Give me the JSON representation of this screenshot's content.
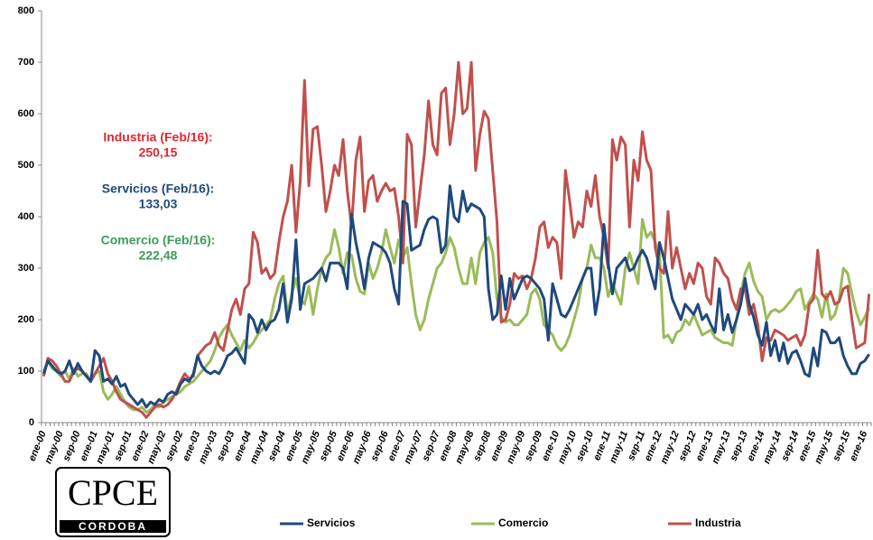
{
  "chart_data": {
    "type": "line",
    "categories": [
      "ene-00",
      null,
      null,
      null,
      "may-00",
      null,
      null,
      null,
      "sep-00",
      null,
      null,
      null,
      "ene-01",
      null,
      null,
      null,
      "may-01",
      null,
      null,
      null,
      "sep-01",
      null,
      null,
      null,
      "ene-02",
      null,
      null,
      null,
      "may-02",
      null,
      null,
      null,
      "sep-02",
      null,
      null,
      null,
      "ene-03",
      null,
      null,
      null,
      "may-03",
      null,
      null,
      null,
      "sep-03",
      null,
      null,
      null,
      "ene-04",
      null,
      null,
      null,
      "may-04",
      null,
      null,
      null,
      "sep-04",
      null,
      null,
      null,
      "ene-05",
      null,
      null,
      null,
      "may-05",
      null,
      null,
      null,
      "sep-05",
      null,
      null,
      null,
      "ene-06",
      null,
      null,
      null,
      "may-06",
      null,
      null,
      null,
      "sep-06",
      null,
      null,
      null,
      "ene-07",
      null,
      null,
      null,
      "may-07",
      null,
      null,
      null,
      "sep-07",
      null,
      null,
      null,
      "ene-08",
      null,
      null,
      null,
      "may-08",
      null,
      null,
      null,
      "sep-08",
      null,
      null,
      null,
      "ene-09",
      null,
      null,
      null,
      "may-09",
      null,
      null,
      null,
      "sep-09",
      null,
      null,
      null,
      "ene-10",
      null,
      null,
      null,
      "may-10",
      null,
      null,
      null,
      "sep-10",
      null,
      null,
      null,
      "ene-11",
      null,
      null,
      null,
      "may-11",
      null,
      null,
      null,
      "sep-11",
      null,
      null,
      null,
      "ene-12",
      null,
      null,
      null,
      "may-12",
      null,
      null,
      null,
      "sep-12",
      null,
      null,
      null,
      "ene-13",
      null,
      null,
      null,
      "may-13",
      null,
      null,
      null,
      "sep-13",
      null,
      null,
      null,
      "ene-14",
      null,
      null,
      null,
      "may-14",
      null,
      null,
      null,
      "sep-14",
      null,
      null,
      null,
      "ene-15",
      null,
      null,
      null,
      "may-15",
      null,
      null,
      null,
      "sep-15",
      null,
      null,
      null,
      "ene-16",
      null
    ],
    "series": [
      {
        "name": "Servicios",
        "color": "#1f497d",
        "values": [
          95,
          120,
          110,
          100,
          95,
          100,
          120,
          95,
          115,
          100,
          90,
          80,
          140,
          130,
          80,
          85,
          75,
          90,
          70,
          75,
          55,
          45,
          35,
          45,
          30,
          40,
          35,
          45,
          40,
          55,
          60,
          55,
          75,
          85,
          80,
          95,
          130,
          110,
          100,
          95,
          100,
          95,
          110,
          130,
          135,
          145,
          130,
          115,
          210,
          200,
          175,
          200,
          180,
          195,
          200,
          220,
          270,
          195,
          240,
          355,
          220,
          270,
          275,
          280,
          290,
          300,
          275,
          310,
          310,
          310,
          300,
          260,
          405,
          350,
          310,
          260,
          320,
          350,
          345,
          340,
          330,
          310,
          260,
          230,
          430,
          425,
          335,
          340,
          345,
          375,
          395,
          400,
          395,
          330,
          345,
          460,
          400,
          390,
          450,
          410,
          425,
          420,
          415,
          400,
          260,
          200,
          210,
          285,
          220,
          280,
          240,
          260,
          280,
          285,
          280,
          270,
          260,
          240,
          160,
          270,
          240,
          210,
          205,
          220,
          240,
          260,
          280,
          300,
          300,
          210,
          260,
          385,
          310,
          250,
          300,
          310,
          320,
          295,
          300,
          320,
          335,
          320,
          290,
          260,
          350,
          320,
          280,
          240,
          220,
          200,
          230,
          220,
          210,
          230,
          200,
          210,
          190,
          175,
          260,
          180,
          210,
          175,
          200,
          230,
          280,
          230,
          205,
          170,
          150,
          195,
          130,
          160,
          120,
          155,
          115,
          135,
          140,
          120,
          95,
          90,
          145,
          110,
          180,
          175,
          155,
          155,
          165,
          130,
          110,
          95,
          95,
          115,
          120,
          133.03
        ]
      },
      {
        "name": "Comercio",
        "color": "#9bbb59",
        "values": [
          100,
          120,
          105,
          100,
          90,
          100,
          85,
          105,
          90,
          95,
          95,
          80,
          95,
          100,
          60,
          45,
          55,
          70,
          55,
          40,
          30,
          25,
          25,
          30,
          20,
          25,
          35,
          30,
          40,
          45,
          50,
          55,
          60,
          70,
          75,
          80,
          90,
          100,
          110,
          120,
          140,
          165,
          180,
          190,
          170,
          155,
          140,
          160,
          145,
          155,
          170,
          180,
          190,
          200,
          240,
          270,
          285,
          210,
          250,
          280,
          240,
          230,
          265,
          210,
          260,
          300,
          320,
          330,
          375,
          340,
          290,
          330,
          325,
          280,
          255,
          250,
          310,
          280,
          300,
          330,
          375,
          340,
          310,
          355,
          320,
          340,
          270,
          210,
          180,
          200,
          240,
          270,
          300,
          310,
          330,
          360,
          340,
          300,
          270,
          270,
          320,
          270,
          330,
          350,
          360,
          330,
          240,
          205,
          195,
          200,
          190,
          190,
          200,
          210,
          250,
          260,
          240,
          190,
          180,
          170,
          150,
          140,
          150,
          170,
          200,
          230,
          280,
          300,
          345,
          320,
          320,
          300,
          245,
          270,
          250,
          230,
          300,
          330,
          300,
          270,
          395,
          360,
          370,
          350,
          330,
          165,
          170,
          155,
          175,
          180,
          200,
          190,
          210,
          190,
          170,
          175,
          180,
          165,
          160,
          155,
          155,
          150,
          200,
          250,
          290,
          310,
          275,
          255,
          245,
          200,
          215,
          220,
          215,
          220,
          230,
          240,
          255,
          260,
          220,
          235,
          250,
          240,
          205,
          250,
          200,
          210,
          240,
          300,
          290,
          250,
          215,
          190,
          205,
          222.48
        ]
      },
      {
        "name": "Industria",
        "color": "#c0504d",
        "values": [
          90,
          125,
          120,
          110,
          95,
          80,
          80,
          100,
          105,
          100,
          90,
          80,
          95,
          110,
          125,
          95,
          80,
          60,
          45,
          40,
          35,
          30,
          25,
          20,
          10,
          20,
          30,
          35,
          30,
          35,
          45,
          60,
          80,
          95,
          85,
          90,
          130,
          140,
          150,
          155,
          175,
          150,
          140,
          180,
          220,
          240,
          210,
          260,
          270,
          370,
          350,
          290,
          300,
          280,
          290,
          350,
          400,
          430,
          500,
          370,
          470,
          665,
          460,
          570,
          575,
          500,
          410,
          450,
          500,
          480,
          550,
          450,
          380,
          510,
          555,
          410,
          470,
          480,
          430,
          450,
          465,
          450,
          455,
          400,
          310,
          560,
          540,
          380,
          450,
          520,
          625,
          540,
          520,
          640,
          650,
          540,
          600,
          700,
          600,
          610,
          700,
          490,
          560,
          605,
          590,
          490,
          390,
          195,
          200,
          230,
          290,
          280,
          285,
          260,
          280,
          320,
          380,
          390,
          340,
          360,
          350,
          280,
          490,
          430,
          360,
          390,
          380,
          450,
          420,
          480,
          400,
          360,
          300,
          550,
          510,
          555,
          540,
          380,
          510,
          470,
          565,
          510,
          490,
          340,
          300,
          290,
          410,
          300,
          340,
          300,
          260,
          290,
          270,
          310,
          300,
          245,
          230,
          320,
          310,
          290,
          280,
          240,
          220,
          260,
          260,
          210,
          230,
          190,
          120,
          165,
          160,
          180,
          175,
          170,
          160,
          165,
          170,
          150,
          170,
          230,
          240,
          335,
          250,
          240,
          255,
          230,
          235,
          260,
          265,
          200,
          145,
          150,
          155,
          250.15
        ]
      }
    ],
    "ylim": [
      0,
      800
    ],
    "yticks": [
      0,
      100,
      200,
      300,
      400,
      500,
      600,
      700,
      800
    ],
    "annotations": [
      {
        "text": "Industria (Feb/16):",
        "value_text": "250,15",
        "color": "#e3262b"
      },
      {
        "text": "Servicios (Feb/16):",
        "value_text": "133,03",
        "color": "#1f497d"
      },
      {
        "text": "Comercio (Feb/16):",
        "value_text": "222,48",
        "color": "#3d9b5c"
      }
    ],
    "logo": {
      "text": "CPCE",
      "subtext": "CORDOBA"
    }
  }
}
